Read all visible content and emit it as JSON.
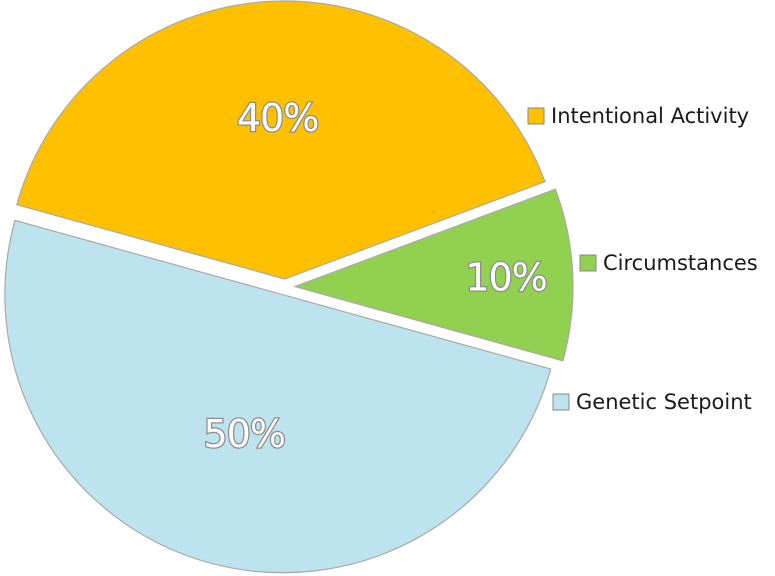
{
  "chart_data": {
    "type": "pie",
    "categories": [
      "Intentional Activity",
      "Circumstances",
      "Genetic Setpoint"
    ],
    "values": [
      40,
      10,
      50
    ],
    "data_labels": [
      "40%",
      "10%",
      "50%"
    ],
    "colors": [
      "#FFC000",
      "#92D050",
      "#BDE3EF"
    ],
    "legend_position": "right",
    "exploded": true
  }
}
